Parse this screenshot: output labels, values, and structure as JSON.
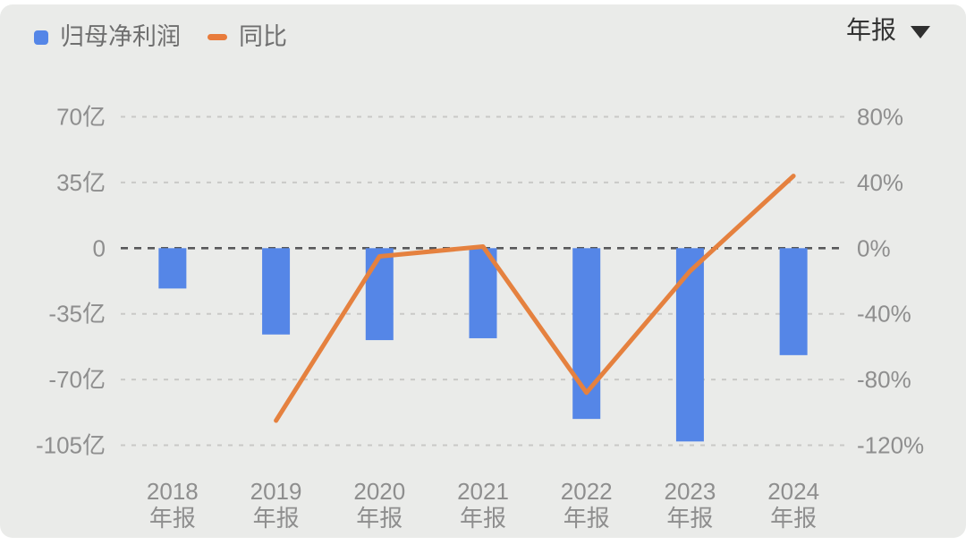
{
  "legend": {
    "bar_label": "归母净利润",
    "line_label": "同比"
  },
  "period_selector": {
    "value": "年报",
    "icon": "chevron-down"
  },
  "colors": {
    "background": "#EAEBE9",
    "bar": "#5586E7",
    "line": "#E5813F",
    "legend_line_swatch": "#E87B3B",
    "axis_text": "#8E8E8E",
    "grid_line": "#C9C9C7",
    "zero_line": "#58585A",
    "legend_text": "#6F6F6F",
    "dropdown_text": "#333333"
  },
  "chart_data": {
    "type": "bar",
    "subtype": "combo-bar-line-dual-axis",
    "categories": [
      "2018",
      "2019",
      "2020",
      "2021",
      "2022",
      "2023",
      "2024"
    ],
    "category_sublabel": "年报",
    "series": [
      {
        "name": "归母净利润",
        "type": "bar",
        "axis": "left",
        "unit": "亿",
        "values": [
          -21.5,
          -46,
          -49,
          -48,
          -91,
          -103,
          -57
        ]
      },
      {
        "name": "同比",
        "type": "line",
        "axis": "right",
        "unit": "%",
        "values": [
          null,
          -105,
          -5,
          1,
          -88,
          -14,
          44
        ]
      }
    ],
    "left_axis": {
      "min": -105,
      "max": 70,
      "ticks": [
        {
          "value": 70,
          "label": "70亿"
        },
        {
          "value": 35,
          "label": "35亿"
        },
        {
          "value": 0,
          "label": "0"
        },
        {
          "value": -35,
          "label": "-35亿"
        },
        {
          "value": -70,
          "label": "-70亿"
        },
        {
          "value": -105,
          "label": "-105亿"
        }
      ]
    },
    "right_axis": {
      "min": -120,
      "max": 80,
      "ticks": [
        {
          "value": 80,
          "label": "80%"
        },
        {
          "value": 40,
          "label": "40%"
        },
        {
          "value": 0,
          "label": "0%"
        },
        {
          "value": -40,
          "label": "-40%"
        },
        {
          "value": -80,
          "label": "-80%"
        },
        {
          "value": -120,
          "label": "-120%"
        }
      ]
    },
    "grid": "dotted-horizontal",
    "legend_position": "top-left"
  }
}
